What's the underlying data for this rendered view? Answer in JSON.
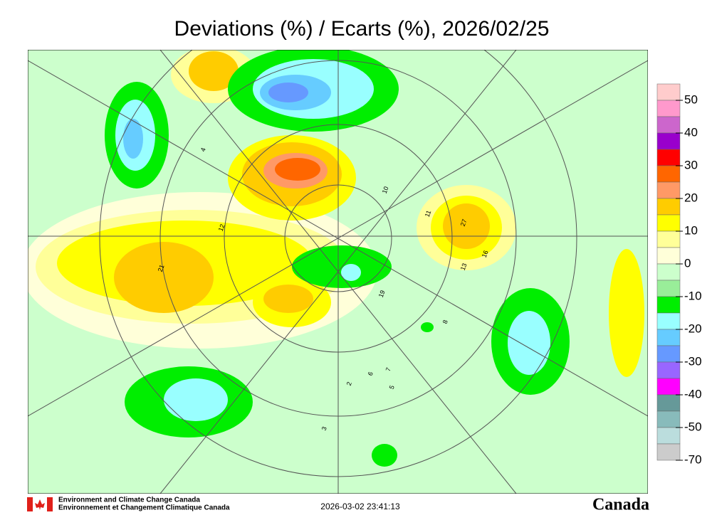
{
  "title": "Deviations (%) / Ecarts (%), 2026/02/25",
  "colorbar": {
    "colors": [
      "#ffcccc",
      "#ff99cc",
      "#cc66cc",
      "#9900cc",
      "#ff0000",
      "#ff6600",
      "#ff9966",
      "#ffcc00",
      "#ffff00",
      "#ffff99",
      "#ffffd9",
      "#ccffcc",
      "#99ee99",
      "#00ee00",
      "#99ffff",
      "#66ccff",
      "#6699ff",
      "#9966ff",
      "#ff00ff",
      "#669999",
      "#88bbbb",
      "#bbdddd",
      "#cccccc"
    ],
    "ticks": [
      50,
      40,
      30,
      20,
      10,
      0,
      -10,
      -20,
      -30,
      -40,
      -50,
      -70
    ]
  },
  "stations": [
    "21",
    "12",
    "27",
    "11",
    "13",
    "16",
    "19",
    "8",
    "6",
    "7",
    "2",
    "3",
    "4",
    "10",
    "5"
  ],
  "footer": {
    "agency_en": "Environment and Climate Change Canada",
    "agency_fr": "Environnement et Changement Climatique Canada",
    "timestamp": "2026-03-02 23:41:13",
    "wordmark": "Canada"
  }
}
